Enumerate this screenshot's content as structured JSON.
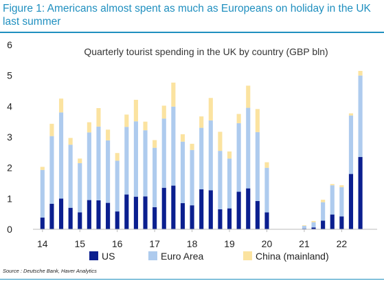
{
  "figure": {
    "title": "Figure 1: Americans almost spent as much as Europeans on holiday in the UK last summer",
    "source": "Source : Deutsche Bank, Haver Analytics"
  },
  "chart_data": {
    "type": "bar",
    "stacked": true,
    "title": "Quarterly tourist spending in the UK by country (GBP bln)",
    "xlabel": "",
    "ylabel": "",
    "ylim": [
      0,
      6
    ],
    "yticks": [
      "0",
      "1",
      "2",
      "3",
      "4",
      "5",
      "6"
    ],
    "grid": false,
    "legend_position": "bottom",
    "x_tick_labels": [
      "14",
      "15",
      "16",
      "17",
      "18",
      "19",
      "20",
      "21",
      "22"
    ],
    "categories": [
      "2014Q1",
      "2014Q2",
      "2014Q3",
      "2014Q4",
      "2015Q1",
      "2015Q2",
      "2015Q3",
      "2015Q4",
      "2016Q1",
      "2016Q2",
      "2016Q3",
      "2016Q4",
      "2017Q1",
      "2017Q2",
      "2017Q3",
      "2017Q4",
      "2018Q1",
      "2018Q2",
      "2018Q3",
      "2018Q4",
      "2019Q1",
      "2019Q2",
      "2019Q3",
      "2019Q4",
      "2020Q1",
      "2020Q2",
      "2020Q3",
      "2020Q4",
      "2021Q1",
      "2021Q2",
      "2021Q3",
      "2021Q4",
      "2022Q1",
      "2022Q2",
      "2022Q3",
      "2022Q4"
    ],
    "series": [
      {
        "name": "US",
        "color": "#0b1f8f",
        "values": [
          0.38,
          0.83,
          1.0,
          0.7,
          0.55,
          0.95,
          0.94,
          0.86,
          0.58,
          1.13,
          1.06,
          1.07,
          0.72,
          1.35,
          1.42,
          0.85,
          0.78,
          1.3,
          1.27,
          0.65,
          0.68,
          1.22,
          1.33,
          0.92,
          0.55,
          0,
          0,
          0,
          0.02,
          0.06,
          0.28,
          0.48,
          0.42,
          1.8,
          2.35,
          0
        ]
      },
      {
        "name": "Euro Area",
        "color": "#aecbee",
        "values": [
          1.55,
          2.2,
          2.8,
          2.05,
          1.6,
          2.2,
          2.4,
          2.03,
          1.65,
          2.2,
          2.45,
          2.15,
          1.93,
          2.25,
          2.57,
          2.0,
          1.8,
          2.0,
          2.27,
          1.9,
          1.62,
          2.23,
          2.62,
          2.24,
          1.45,
          0,
          0,
          0,
          0.09,
          0.17,
          0.6,
          0.95,
          0.95,
          1.9,
          2.65,
          0
        ]
      },
      {
        "name": "China (mainland)",
        "color": "#fbe3a0",
        "values": [
          0.1,
          0.4,
          0.45,
          0.22,
          0.15,
          0.33,
          0.6,
          0.35,
          0.25,
          0.4,
          0.7,
          0.28,
          0.25,
          0.42,
          0.78,
          0.24,
          0.2,
          0.37,
          0.73,
          0.62,
          0.23,
          0.3,
          0.72,
          0.75,
          0.18,
          0,
          0,
          0,
          0.02,
          0.04,
          0.08,
          0.04,
          0.06,
          0.07,
          0.15,
          0
        ]
      }
    ]
  }
}
